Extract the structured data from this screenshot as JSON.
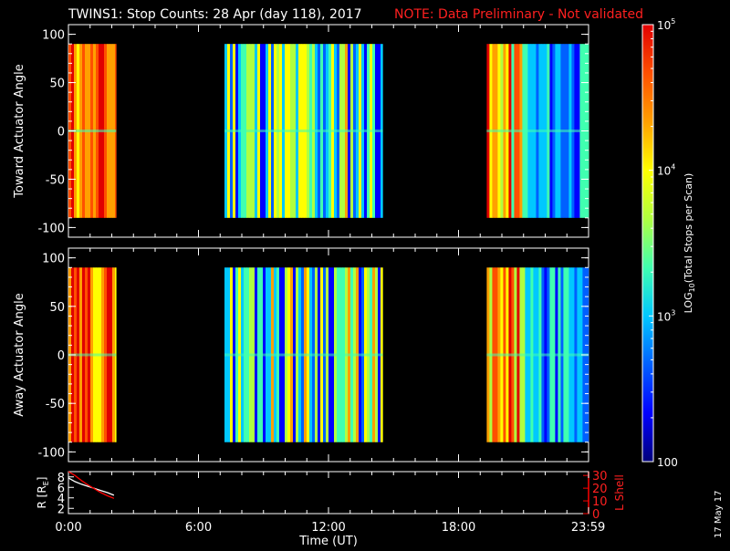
{
  "header": {
    "title": "TWINS1: Stop Counts: 28 Apr (day 118), 2017",
    "note": "NOTE: Data Preliminary - Not validated",
    "note_color": "#ff2020"
  },
  "stamp": "17 May 17",
  "chart_data": [
    {
      "type": "heatmap",
      "panel": "top",
      "ylabel": "Toward Actuator Angle",
      "ylim": [
        -110,
        110
      ],
      "yticks": [
        100,
        50,
        0,
        -50,
        -100
      ],
      "xlim": [
        0,
        24
      ],
      "angle_range": [
        -90,
        90
      ],
      "data_intervals": [
        {
          "start": 0.0,
          "end": 2.2,
          "level": "high"
        },
        {
          "start": 7.2,
          "end": 14.5,
          "level": "mid"
        },
        {
          "start": 19.3,
          "end": 24.0,
          "level": "mixed"
        }
      ],
      "grid": false
    },
    {
      "type": "heatmap",
      "panel": "middle",
      "ylabel": "Away Actuator Angle",
      "ylim": [
        -110,
        110
      ],
      "yticks": [
        100,
        50,
        0,
        -50,
        -100
      ],
      "xlim": [
        0,
        24
      ],
      "angle_range": [
        -90,
        90
      ],
      "data_intervals": [
        {
          "start": 0.0,
          "end": 2.2,
          "level": "high"
        },
        {
          "start": 7.2,
          "end": 14.5,
          "level": "mid"
        },
        {
          "start": 19.3,
          "end": 24.0,
          "level": "mixed"
        }
      ],
      "grid": false
    },
    {
      "type": "line",
      "panel": "bottom",
      "ylabel_left": "R [R",
      "ylabel_left_sub": "E",
      "ylabel_left_end": "]",
      "ylabel_right": "L Shell",
      "ylim_left": [
        1,
        9
      ],
      "yticks_left": [
        8,
        6,
        4,
        2
      ],
      "ylim_right": [
        0,
        33
      ],
      "yticks_right": [
        30,
        20,
        10,
        0
      ],
      "xlim": [
        0,
        24
      ],
      "xlabel": "Time (UT)",
      "xticks": [
        0,
        6,
        12,
        18,
        23.983
      ],
      "xtick_labels": [
        "0:00",
        "6:00",
        "12:00",
        "18:00",
        "23:59"
      ],
      "series": [
        {
          "color": "#ffffff",
          "x": [
            0.0,
            0.3,
            0.6,
            0.9,
            1.2,
            1.5,
            1.8,
            2.1
          ],
          "y": [
            7.8,
            7.1,
            6.6,
            6.2,
            5.8,
            5.4,
            5.0,
            4.5
          ]
        },
        {
          "color": "#ff0000",
          "axis": "right",
          "x": [
            0.0,
            0.3,
            0.6,
            0.9,
            1.2,
            1.5,
            1.8,
            2.1
          ],
          "y": [
            33,
            30,
            26,
            22.5,
            19.5,
            16.5,
            14,
            12
          ]
        }
      ]
    }
  ],
  "colorbar": {
    "label": "LOG",
    "label_sub": "10",
    "label_end": "(Total Stops per Scan)",
    "ticks": [
      {
        "value": 100000,
        "base": "10",
        "exp": "5"
      },
      {
        "value": 10000,
        "base": "10",
        "exp": "4"
      },
      {
        "value": 1000,
        "base": "10",
        "exp": "3"
      },
      {
        "value": 100,
        "base": "100",
        "exp": ""
      }
    ],
    "range": [
      100,
      100000
    ],
    "colors": [
      "#00007a",
      "#0000ff",
      "#0060ff",
      "#00c8ff",
      "#40ffb0",
      "#b0ff40",
      "#ffff00",
      "#ffa000",
      "#ff5000",
      "#e00000"
    ]
  }
}
